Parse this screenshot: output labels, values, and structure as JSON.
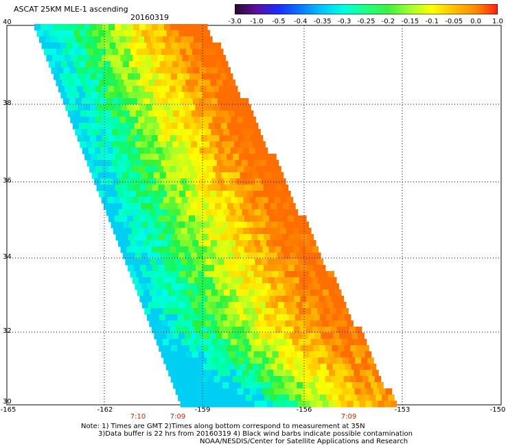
{
  "header": {
    "title": "ASCAT 25KM MLE-1 ascending",
    "date": "20160319"
  },
  "colorbar": {
    "labels": [
      "-3.0",
      "-1.0",
      "-0.5",
      "-0.4",
      "-0.35",
      "-0.3",
      "-0.25",
      "-0.2",
      "-0.15",
      "-0.1",
      "-0.05",
      "0.0",
      "1.0"
    ],
    "colors": [
      "#2a0a2a",
      "#5a10a0",
      "#1a2cff",
      "#0a78ff",
      "#00c8ff",
      "#00ffe0",
      "#20ff80",
      "#40f040",
      "#a0ff30",
      "#ffff00",
      "#ffc000",
      "#ff8a00",
      "#ff2010"
    ]
  },
  "map": {
    "lat_labels": [
      "40",
      "38",
      "36",
      "34",
      "32",
      "30"
    ],
    "lon_labels": [
      "-165",
      "-162",
      "-159",
      "-156",
      "-153",
      "-150"
    ],
    "time_labels": [
      "7:10",
      "7:09",
      "7:09"
    ],
    "grid": "dotted",
    "lat_range": [
      30,
      40
    ],
    "lon_range": [
      -165,
      -150
    ]
  },
  "notes": {
    "line1": "Note: 1) Times are GMT 2)Times along bottom correspond to measurement at 35N",
    "line2": "3)Data buffer is 22 hrs from 20160319 4) Black wind barbs indicate possible contamination",
    "line3": "NOAA/NESDIS/Center for Satellite Applications and Research"
  }
}
